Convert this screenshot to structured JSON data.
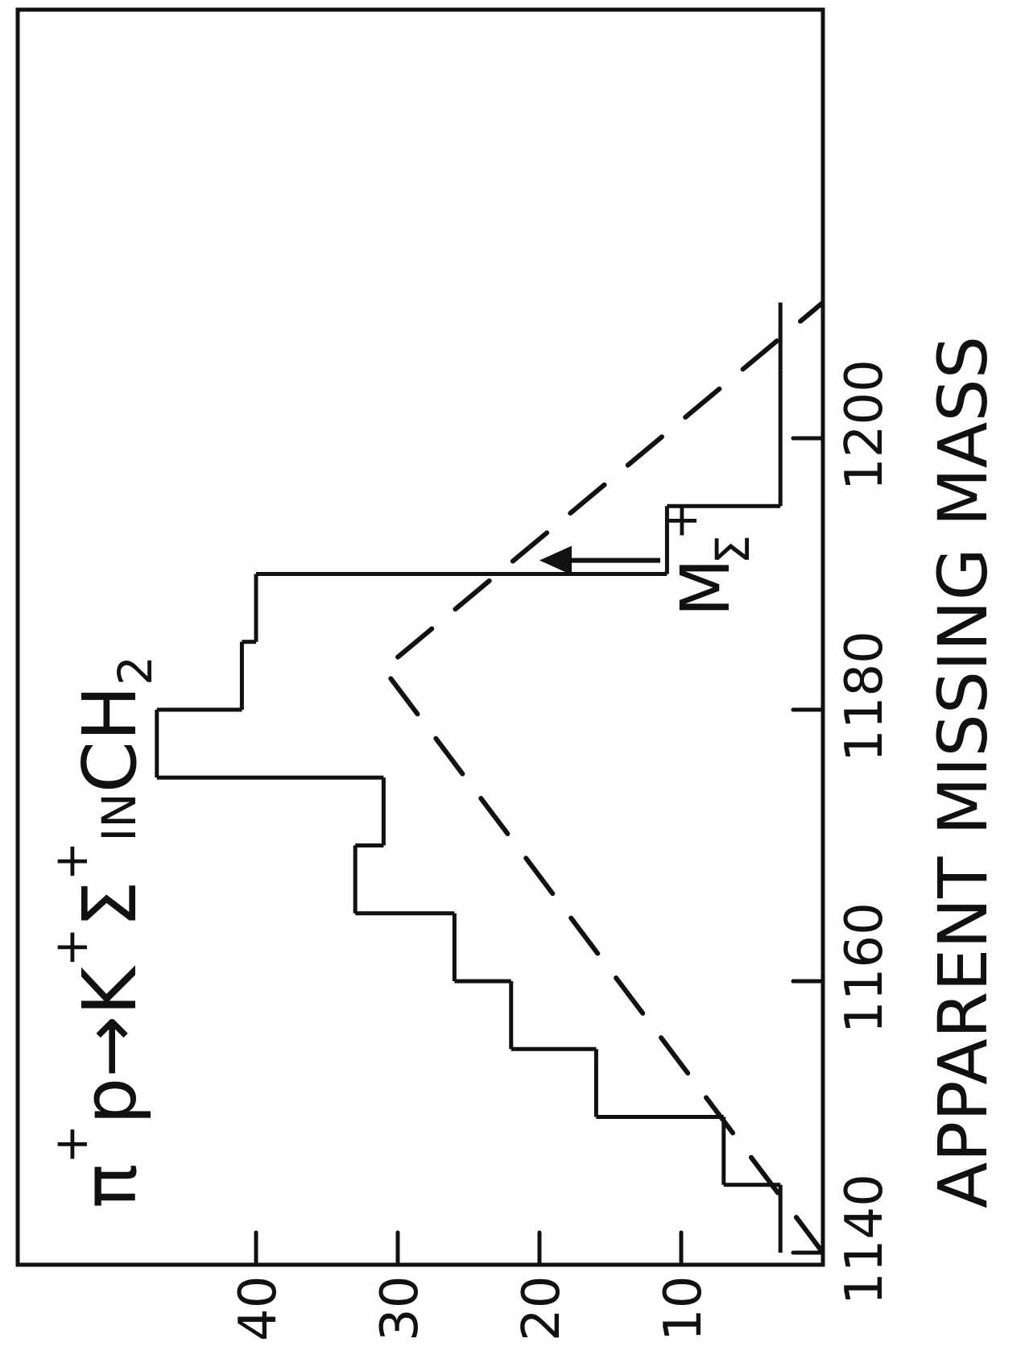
{
  "chart_data": {
    "type": "bar",
    "orientation": "rotated-90-ccw",
    "title": {
      "pi": "π",
      "sup1": "+",
      "p": "p",
      "arrow": "→",
      "K": "K",
      "sup2": "+",
      "sigma": "Σ",
      "sup3": "+",
      "in": "IN",
      "CH": "CH",
      "sub": "2"
    },
    "xlabel": "APPARENT MISSING MASS",
    "ylabel": "",
    "x_ticks": [
      "1140",
      "1160",
      "1180",
      "1200"
    ],
    "y_ticks": [
      "10",
      "20",
      "30",
      "40"
    ],
    "xlim": [
      1140,
      1210
    ],
    "ylim": [
      0,
      48
    ],
    "bin_edges": [
      1140,
      1145,
      1150,
      1155,
      1160,
      1165,
      1170,
      1175,
      1180,
      1185,
      1190,
      1195,
      1200,
      1205,
      1210
    ],
    "values": [
      3,
      7,
      16,
      22,
      26,
      33,
      31,
      47,
      41,
      40,
      11,
      3,
      3,
      3
    ],
    "fit_curve": {
      "style": "dashed",
      "x": [
        1140,
        1183,
        1210
      ],
      "y": [
        0,
        31,
        0
      ]
    },
    "annotation": {
      "M": "M",
      "sigma": "Σ",
      "sup": "+",
      "x": 1191,
      "arrow_tip_y": 20
    },
    "grid": false
  }
}
